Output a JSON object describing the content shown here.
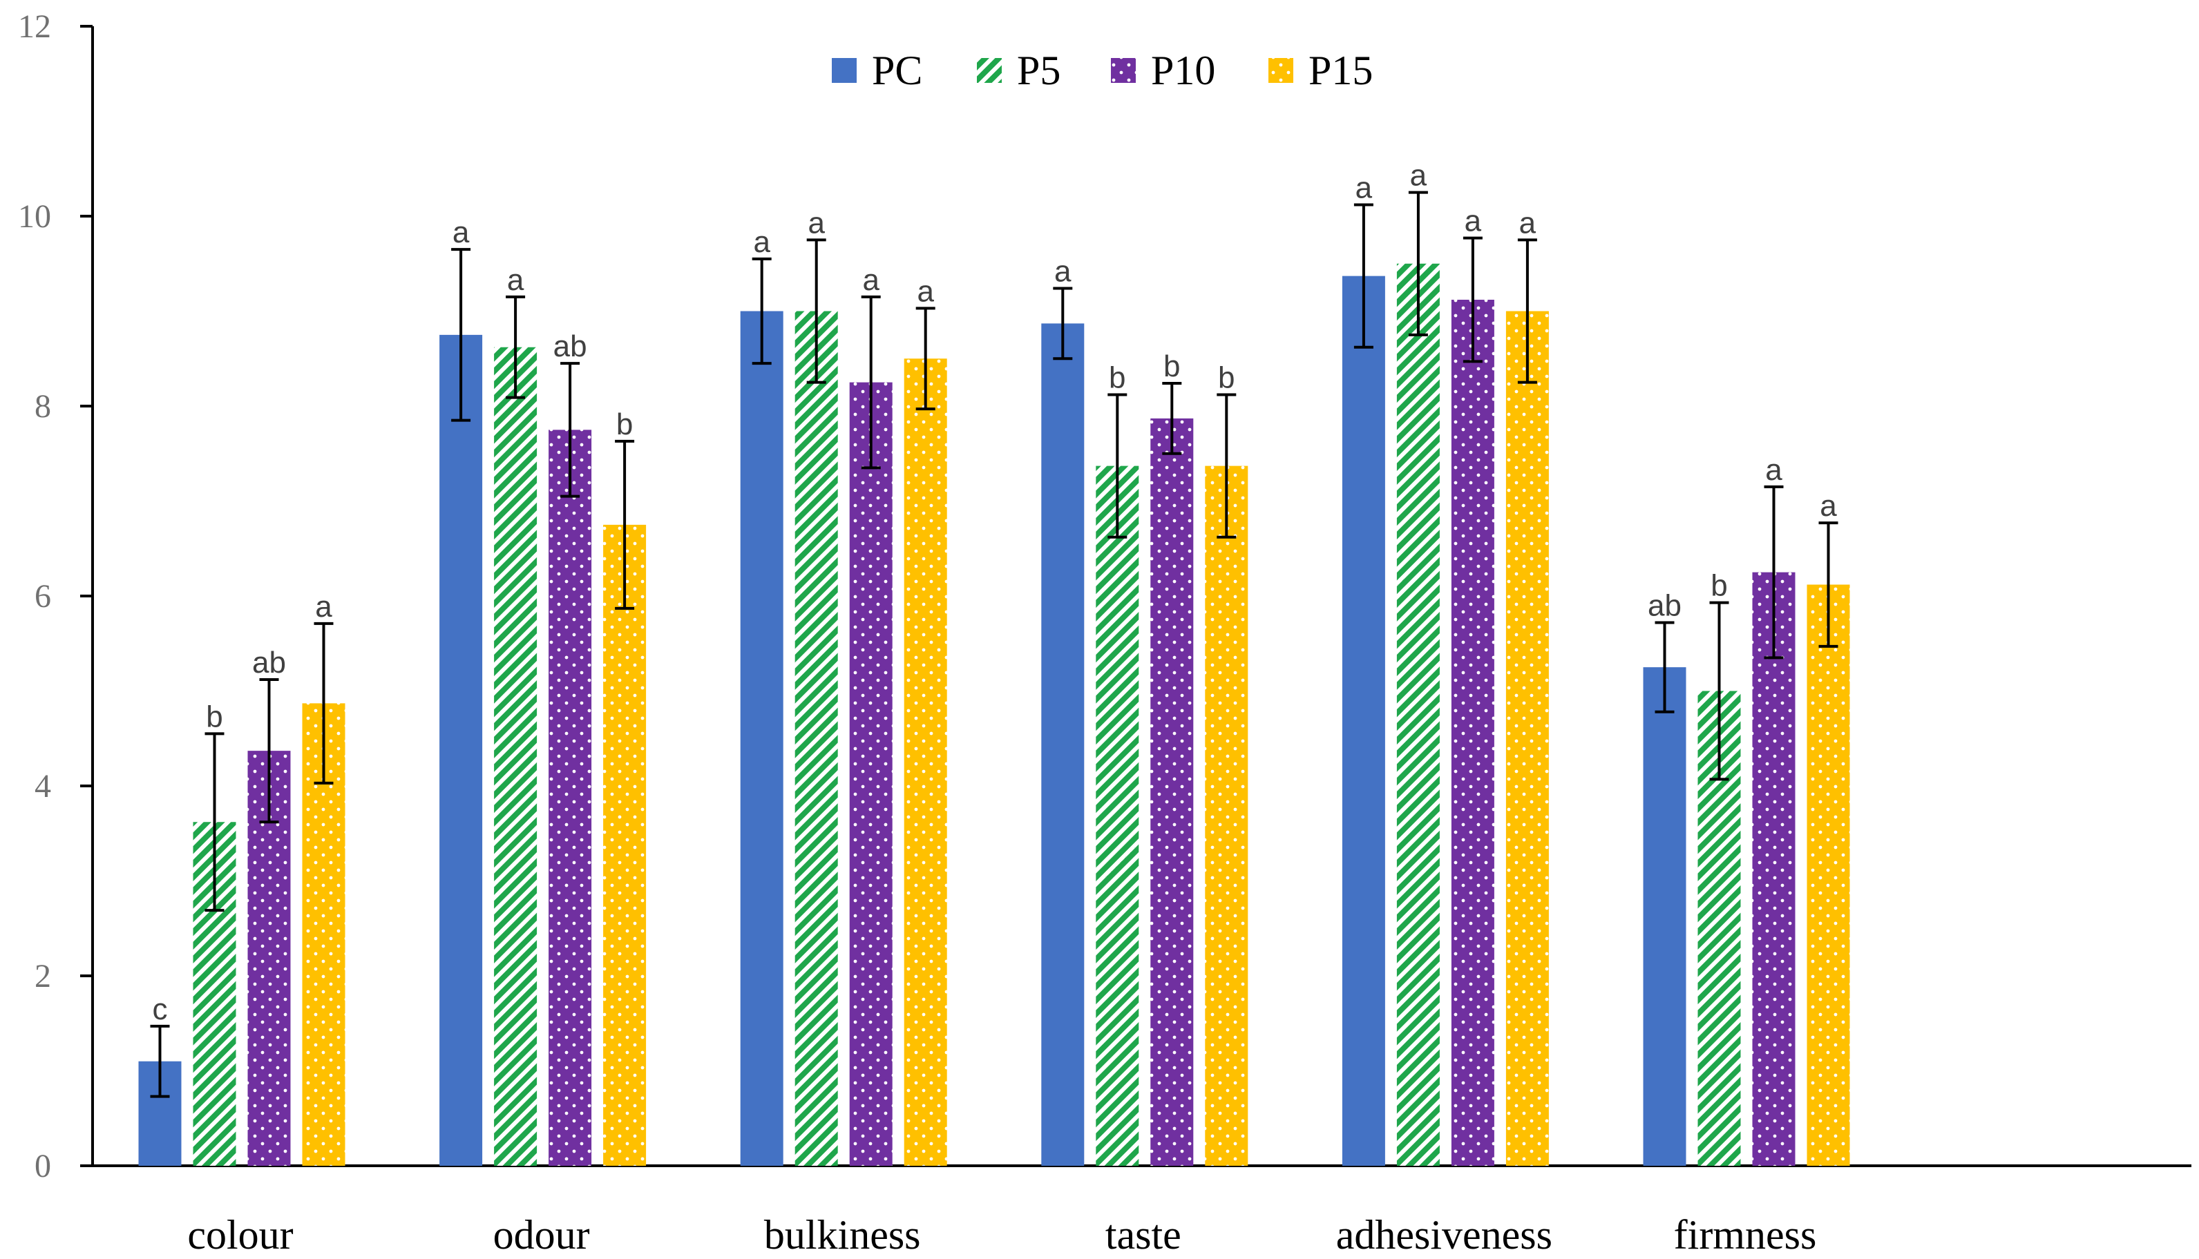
{
  "chart_data": {
    "type": "bar",
    "title": "",
    "xlabel": "",
    "ylabel": "",
    "ylim": [
      0,
      12
    ],
    "yticks": [
      0,
      2,
      4,
      6,
      8,
      10,
      12
    ],
    "legend_position": "top-center",
    "categories": [
      "colour",
      "odour",
      "bulkiness",
      "taste",
      "adhesiveness",
      "firmness"
    ],
    "series": [
      {
        "name": "PC",
        "color": "#4472C4",
        "pattern": "solid",
        "values": [
          1.1,
          8.75,
          9.0,
          8.87,
          9.37,
          5.25
        ],
        "errors": [
          0.37,
          0.9,
          0.55,
          0.37,
          0.75,
          0.47
        ],
        "labels": [
          "c",
          "a",
          "a",
          "a",
          "a",
          "ab"
        ]
      },
      {
        "name": "P5",
        "color": "#1FA64B",
        "pattern": "diagonal-stripes",
        "values": [
          3.62,
          8.62,
          9.0,
          7.37,
          9.5,
          5.0
        ],
        "errors": [
          0.93,
          0.53,
          0.75,
          0.75,
          0.75,
          0.93
        ],
        "labels": [
          "b",
          "a",
          "a",
          "b",
          "a",
          "b"
        ]
      },
      {
        "name": "P10",
        "color": "#7030A0",
        "pattern": "dots",
        "values": [
          4.37,
          7.75,
          8.25,
          7.87,
          9.12,
          6.25
        ],
        "errors": [
          0.75,
          0.7,
          0.9,
          0.37,
          0.65,
          0.9
        ],
        "labels": [
          "ab",
          "ab",
          "a",
          "b",
          "a",
          "a"
        ]
      },
      {
        "name": "P15",
        "color": "#FFC000",
        "pattern": "dots",
        "values": [
          4.87,
          6.75,
          8.5,
          7.37,
          9.0,
          6.12
        ],
        "errors": [
          0.84,
          0.88,
          0.53,
          0.75,
          0.75,
          0.65
        ],
        "labels": [
          "a",
          "b",
          "a",
          "b",
          "a",
          "a"
        ]
      }
    ]
  }
}
